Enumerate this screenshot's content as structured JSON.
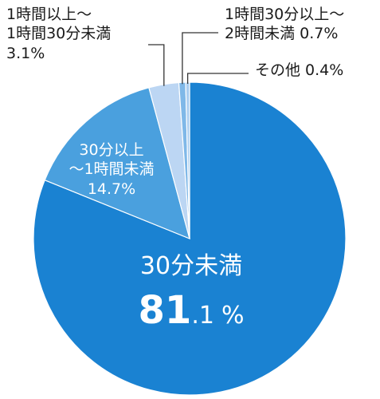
{
  "chart_data": {
    "type": "pie",
    "title": "",
    "slices": [
      {
        "name": "30分未満",
        "value": 81.1,
        "color": "#1a82d2"
      },
      {
        "name": "30分以上〜1時間未満",
        "value": 14.7,
        "color": "#4aa0de"
      },
      {
        "name": "1時間以上〜1時間30分未満",
        "value": 3.1,
        "color": "#bcd6f3"
      },
      {
        "name": "1時間30分以上〜2時間未満",
        "value": 0.7,
        "color": "#7fb8e8"
      },
      {
        "name": "その他",
        "value": 0.4,
        "color": "#a9cdf0"
      }
    ],
    "start": "12 o'clock",
    "direction": "clockwise"
  },
  "labels": {
    "under30": {
      "name": "30分未満",
      "int": "81",
      "dec": ".1",
      "unit": "%"
    },
    "30to60": {
      "line1": "30分以上",
      "line2": "〜1時間未満",
      "line3": "14.7%"
    },
    "60to90": {
      "line1": "1時間以上〜",
      "line2": "1時間30分未満",
      "line3": "3.1%"
    },
    "90to120": {
      "line1": "1時間30分以上〜",
      "line2": "2時間未満 0.7%"
    },
    "other": {
      "line1": "その他 0.4%"
    }
  }
}
